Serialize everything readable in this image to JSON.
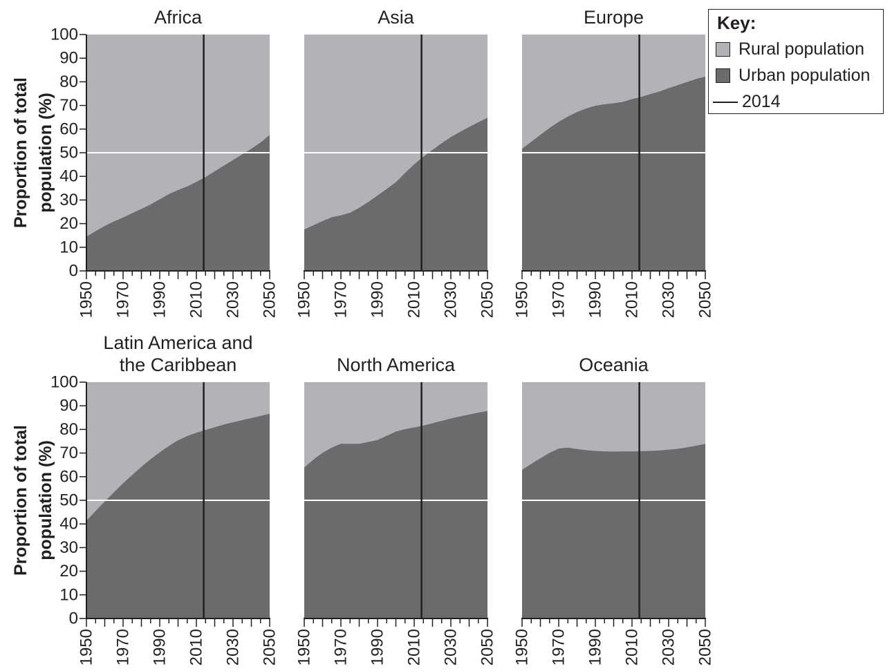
{
  "colors": {
    "rural": "#b1b3b6",
    "urban": "#6b6b6d",
    "line_2014": "#231f20",
    "line_50": "#ffffff",
    "text": "#231f20"
  },
  "legend": {
    "title": "Key:",
    "items": [
      {
        "label": "Rural population",
        "swatch": "rural"
      },
      {
        "label": "Urban population",
        "swatch": "urban"
      },
      {
        "label": "2014",
        "swatch": "line"
      }
    ]
  },
  "chart_data": [
    {
      "type": "area",
      "title_lines": [
        "Africa"
      ],
      "ylabel_lines": [
        "Proportion of total",
        "population (%)"
      ],
      "xlim": [
        1950,
        2050
      ],
      "ylim": [
        0,
        100
      ],
      "xticks": [
        1950,
        1970,
        1990,
        2010,
        2030,
        2050
      ],
      "yticks": [
        0,
        10,
        20,
        30,
        40,
        50,
        60,
        70,
        80,
        90,
        100
      ],
      "marker_year": 2014,
      "reference_y": 50,
      "series": [
        {
          "name": "Urban population",
          "x": [
            1950,
            1955,
            1960,
            1965,
            1970,
            1975,
            1980,
            1985,
            1990,
            1995,
            2000,
            2005,
            2010,
            2015,
            2020,
            2025,
            2030,
            2035,
            2040,
            2045,
            2050
          ],
          "values": [
            14.5,
            16.8,
            19.0,
            20.9,
            22.6,
            24.4,
            26.2,
            28.1,
            30.3,
            32.5,
            34.2,
            35.7,
            37.7,
            39.7,
            42.1,
            44.5,
            46.9,
            49.3,
            51.7,
            54.3,
            57.5
          ]
        }
      ]
    },
    {
      "type": "area",
      "title_lines": [
        "Asia"
      ],
      "ylabel_lines": [],
      "xlim": [
        1950,
        2050
      ],
      "ylim": [
        0,
        100
      ],
      "xticks": [
        1950,
        1970,
        1990,
        2010,
        2030,
        2050
      ],
      "yticks": [],
      "marker_year": 2014,
      "reference_y": 50,
      "series": [
        {
          "name": "Urban population",
          "x": [
            1950,
            1955,
            1960,
            1965,
            1970,
            1975,
            1980,
            1985,
            1990,
            1995,
            2000,
            2005,
            2010,
            2015,
            2020,
            2025,
            2030,
            2035,
            2040,
            2045,
            2050
          ],
          "values": [
            17.5,
            19.3,
            21.1,
            22.7,
            23.5,
            24.6,
            26.7,
            29.2,
            31.9,
            34.7,
            37.5,
            41.4,
            45.1,
            48.3,
            51.2,
            54.0,
            56.6,
            58.8,
            60.9,
            62.9,
            64.8
          ]
        }
      ]
    },
    {
      "type": "area",
      "title_lines": [
        "Europe"
      ],
      "ylabel_lines": [],
      "xlim": [
        1950,
        2050
      ],
      "ylim": [
        0,
        100
      ],
      "xticks": [
        1950,
        1970,
        1990,
        2010,
        2030,
        2050
      ],
      "yticks": [],
      "marker_year": 2014,
      "reference_y": 50,
      "series": [
        {
          "name": "Urban population",
          "x": [
            1950,
            1955,
            1960,
            1965,
            1970,
            1975,
            1980,
            1985,
            1990,
            1995,
            2000,
            2005,
            2010,
            2015,
            2020,
            2025,
            2030,
            2035,
            2040,
            2045,
            2050
          ],
          "values": [
            51.7,
            54.6,
            57.6,
            60.5,
            63.1,
            65.3,
            67.2,
            68.7,
            69.9,
            70.5,
            70.9,
            71.5,
            72.7,
            73.6,
            74.8,
            75.9,
            77.3,
            78.6,
            79.9,
            81.2,
            82.2
          ]
        }
      ]
    },
    {
      "type": "area",
      "title_lines": [
        "Latin America and",
        "the Caribbean"
      ],
      "ylabel_lines": [
        "Proportion of total",
        "population (%)"
      ],
      "xlim": [
        1950,
        2050
      ],
      "ylim": [
        0,
        100
      ],
      "xticks": [
        1950,
        1970,
        1990,
        2010,
        2030,
        2050
      ],
      "yticks": [
        0,
        10,
        20,
        30,
        40,
        50,
        60,
        70,
        80,
        90,
        100
      ],
      "marker_year": 2014,
      "reference_y": 50,
      "series": [
        {
          "name": "Urban population",
          "x": [
            1950,
            1955,
            1960,
            1965,
            1970,
            1975,
            1980,
            1985,
            1990,
            1995,
            2000,
            2005,
            2010,
            2015,
            2020,
            2025,
            2030,
            2035,
            2040,
            2045,
            2050
          ],
          "values": [
            41.3,
            45.5,
            49.5,
            53.4,
            57.2,
            60.7,
            64.2,
            67.4,
            70.3,
            73.0,
            75.4,
            77.2,
            78.6,
            79.8,
            80.9,
            82.1,
            83.0,
            83.9,
            84.8,
            85.7,
            86.6
          ]
        }
      ]
    },
    {
      "type": "area",
      "title_lines": [
        "North America"
      ],
      "ylabel_lines": [],
      "xlim": [
        1950,
        2050
      ],
      "ylim": [
        0,
        100
      ],
      "xticks": [
        1950,
        1970,
        1990,
        2010,
        2030,
        2050
      ],
      "yticks": [],
      "marker_year": 2014,
      "reference_y": 50,
      "series": [
        {
          "name": "Urban population",
          "x": [
            1950,
            1955,
            1960,
            1965,
            1970,
            1975,
            1980,
            1985,
            1990,
            1995,
            2000,
            2005,
            2010,
            2015,
            2020,
            2025,
            2030,
            2035,
            2040,
            2045,
            2050
          ],
          "values": [
            63.9,
            67.2,
            70.1,
            72.3,
            73.9,
            73.9,
            73.9,
            74.7,
            75.5,
            77.3,
            79.1,
            80.1,
            80.8,
            81.6,
            82.6,
            83.6,
            84.6,
            85.5,
            86.3,
            87.1,
            87.8
          ]
        }
      ]
    },
    {
      "type": "area",
      "title_lines": [
        "Oceania"
      ],
      "ylabel_lines": [],
      "xlim": [
        1950,
        2050
      ],
      "ylim": [
        0,
        100
      ],
      "xticks": [
        1950,
        1970,
        1990,
        2010,
        2030,
        2050
      ],
      "yticks": [],
      "marker_year": 2014,
      "reference_y": 50,
      "series": [
        {
          "name": "Urban population",
          "x": [
            1950,
            1955,
            1960,
            1965,
            1970,
            1975,
            1980,
            1985,
            1990,
            1995,
            2000,
            2005,
            2010,
            2015,
            2020,
            2025,
            2030,
            2035,
            2040,
            2045,
            2050
          ],
          "values": [
            62.9,
            65.4,
            67.8,
            70.1,
            71.9,
            72.3,
            71.7,
            71.2,
            70.9,
            70.7,
            70.6,
            70.7,
            70.7,
            70.8,
            70.9,
            71.1,
            71.4,
            71.8,
            72.4,
            73.1,
            73.9
          ]
        }
      ]
    }
  ]
}
